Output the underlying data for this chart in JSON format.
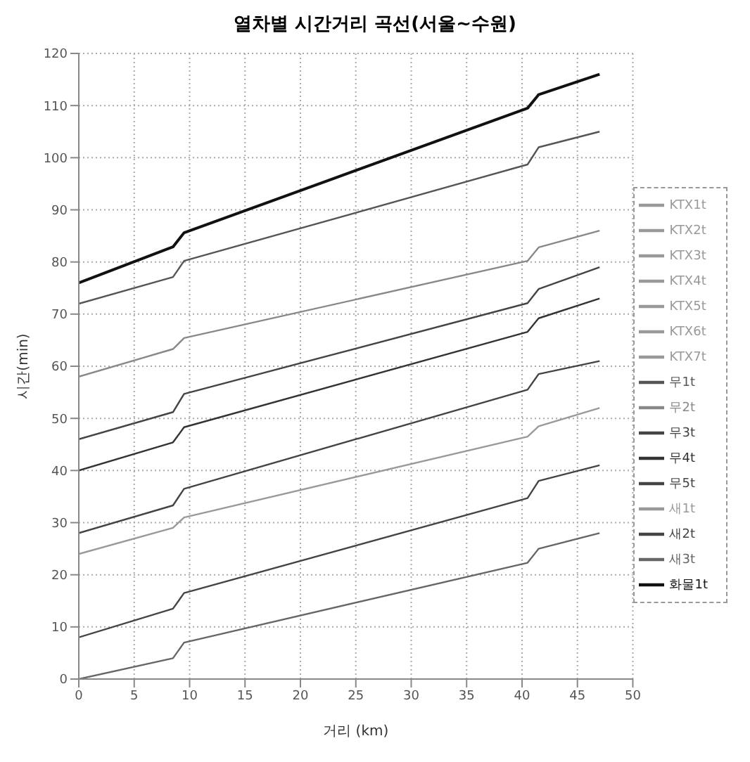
{
  "chart_data": {
    "type": "line",
    "title": "열차별 시간거리 곡선(서울~수원)",
    "xlabel": "거리 (km)",
    "ylabel": "시간(min)",
    "x": [
      0,
      8.5,
      9.5,
      40.5,
      41.5,
      47
    ],
    "xlim": [
      0,
      50
    ],
    "xticks": [
      0,
      5,
      10,
      15,
      20,
      25,
      30,
      35,
      40,
      45,
      50
    ],
    "ylim": [
      0,
      120
    ],
    "yticks": [
      0,
      10,
      20,
      30,
      40,
      50,
      60,
      70,
      80,
      90,
      100,
      110,
      120
    ],
    "grid": true,
    "legend": "right",
    "marker": "none",
    "line_style": "solid",
    "series": [
      {
        "name": "화물1t",
        "color": "#111111",
        "values": [
          76,
          82.9,
          85.6,
          109.5,
          112.1,
          116
        ]
      },
      {
        "name": "무1t",
        "color": "#555555",
        "values": [
          72,
          77.1,
          80.2,
          98.7,
          102,
          105
        ]
      },
      {
        "name": "무2t",
        "color": "#888888",
        "values": [
          58,
          63.3,
          65.4,
          80.2,
          82.8,
          86
        ]
      },
      {
        "name": "무3t",
        "color": "#444444",
        "values": [
          46,
          51.2,
          54.7,
          72.1,
          74.8,
          79
        ]
      },
      {
        "name": "무4t",
        "color": "#333333",
        "values": [
          40,
          45.4,
          48.3,
          66.6,
          69.2,
          73
        ]
      },
      {
        "name": "무5t",
        "color": "#444444",
        "values": [
          28,
          33.3,
          36.5,
          55.5,
          58.5,
          61
        ]
      },
      {
        "name": "새1t",
        "color": "#999999",
        "values": [
          24,
          29,
          31,
          46.5,
          48.5,
          52
        ]
      },
      {
        "name": "새2t",
        "color": "#444444",
        "values": [
          8,
          13.5,
          16.5,
          34.7,
          38,
          41
        ]
      },
      {
        "name": "새3t",
        "color": "#666666",
        "values": [
          0,
          4,
          7,
          22.3,
          25,
          28
        ]
      },
      {
        "name": "KTX1t",
        "color": "#999999",
        "values": [
          null,
          null,
          null,
          null,
          null,
          null
        ]
      },
      {
        "name": "KTX2t",
        "color": "#999999",
        "values": [
          null,
          null,
          null,
          null,
          null,
          null
        ]
      },
      {
        "name": "KTX3t",
        "color": "#999999",
        "values": [
          null,
          null,
          null,
          null,
          null,
          null
        ]
      },
      {
        "name": "KTX4t",
        "color": "#999999",
        "values": [
          null,
          null,
          null,
          null,
          null,
          null
        ]
      },
      {
        "name": "KTX5t",
        "color": "#999999",
        "values": [
          null,
          null,
          null,
          null,
          null,
          null
        ]
      },
      {
        "name": "KTX6t",
        "color": "#999999",
        "values": [
          null,
          null,
          null,
          null,
          null,
          null
        ]
      },
      {
        "name": "KTX7t",
        "color": "#999999",
        "values": [
          null,
          null,
          null,
          null,
          null,
          null
        ]
      }
    ]
  }
}
